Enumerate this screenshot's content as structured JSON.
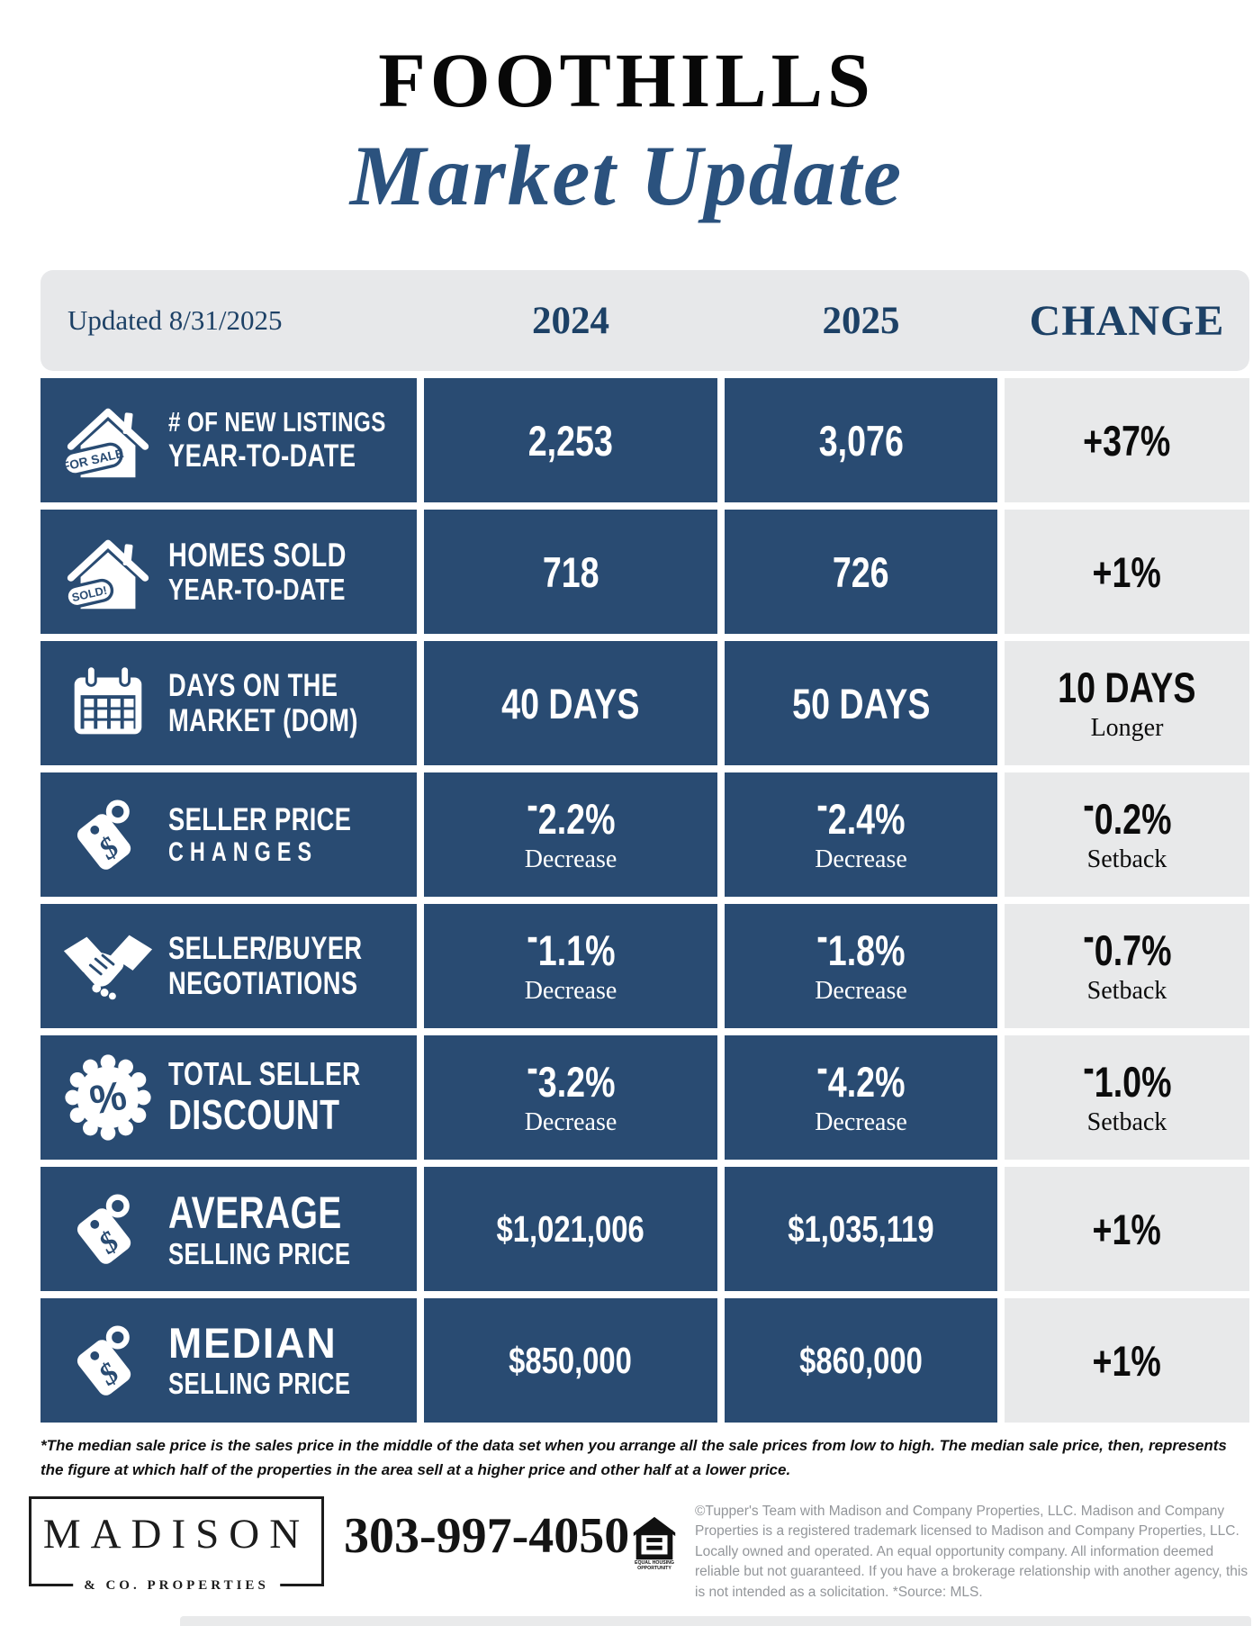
{
  "title": {
    "line1": "FOOTHILLS",
    "line2": "Market Update"
  },
  "header": {
    "updated": "Updated 8/31/2025",
    "col_2024": "2024",
    "col_2025": "2025",
    "col_change": "CHANGE"
  },
  "colors": {
    "navy_cell": "#294b72",
    "header_bg": "#e7e8ea",
    "header_text": "#1d4166",
    "title_blue": "#2b527e"
  },
  "icon_text": {
    "for_sale_tag": "FOR SALE",
    "sold_tag": "SOLD!",
    "dollar": "$",
    "percent": "%"
  },
  "rows": [
    {
      "icon": "house-for-sale-icon",
      "label": [
        "# OF NEW LISTINGS",
        "YEAR-TO-DATE"
      ],
      "y2024": {
        "value": "2,253"
      },
      "y2025": {
        "value": "3,076"
      },
      "change": {
        "value": "+37%"
      }
    },
    {
      "icon": "house-sold-icon",
      "label": [
        "HOMES SOLD",
        "YEAR-TO-DATE"
      ],
      "y2024": {
        "value": "718"
      },
      "y2025": {
        "value": "726"
      },
      "change": {
        "value": "+1%"
      }
    },
    {
      "icon": "calendar-icon",
      "label": [
        "DAYS ON THE",
        "MARKET (DOM)"
      ],
      "y2024": {
        "value": "40 DAYS"
      },
      "y2025": {
        "value": "50 DAYS"
      },
      "change": {
        "value": "10 DAYS",
        "sub": "Longer"
      }
    },
    {
      "icon": "price-tag-icon",
      "label": [
        "SELLER PRICE",
        "CHANGES"
      ],
      "y2024": {
        "value": "-2.2%",
        "sub": "Decrease"
      },
      "y2025": {
        "value": "-2.4%",
        "sub": "Decrease"
      },
      "change": {
        "value": "-0.2%",
        "sub": "Setback"
      }
    },
    {
      "icon": "handshake-icon",
      "label": [
        "SELLER/BUYER",
        "NEGOTIATIONS"
      ],
      "y2024": {
        "value": "-1.1%",
        "sub": "Decrease"
      },
      "y2025": {
        "value": "-1.8%",
        "sub": "Decrease"
      },
      "change": {
        "value": "-0.7%",
        "sub": "Setback"
      }
    },
    {
      "icon": "percent-badge-icon",
      "label": [
        "TOTAL SELLER",
        "DISCOUNT"
      ],
      "y2024": {
        "value": "-3.2%",
        "sub": "Decrease"
      },
      "y2025": {
        "value": "-4.2%",
        "sub": "Decrease"
      },
      "change": {
        "value": "-1.0%",
        "sub": "Setback"
      }
    },
    {
      "icon": "price-tag-icon",
      "label": [
        "AVERAGE",
        "SELLING PRICE"
      ],
      "y2024": {
        "value": "$1,021,006"
      },
      "y2025": {
        "value": "$1,035,119"
      },
      "change": {
        "value": "+1%"
      }
    },
    {
      "icon": "price-tag-icon",
      "label": [
        "MEDIAN",
        "SELLING PRICE"
      ],
      "y2024": {
        "value": "$850,000"
      },
      "y2025": {
        "value": "$860,000"
      },
      "change": {
        "value": "+1%"
      }
    }
  ],
  "disclaimer": "*The median sale price is the sales price in the middle of the data set when you arrange all the sale prices from low to high. The median sale price, then, represents the figure at which half of the properties in the area sell at a higher price and other half at a lower price.",
  "footer": {
    "brand_name": "MADISON",
    "brand_sub": "& CO. PROPERTIES",
    "phone": "303-997-4050",
    "equal_housing_line1": "EQUAL HOUSING",
    "equal_housing_line2": "OPPORTUNITY",
    "legal": "©Tupper's Team with Madison and Company Properties, LLC. Madison and Company Properties is a registered trademark licensed to Madison and Company Properties, LLC. Locally owned and operated.  An equal opportunity company. All information deemed reliable but not guaranteed. If you have a brokerage relationship with another agency, this is not intended as a solicitation. *Source: MLS."
  }
}
